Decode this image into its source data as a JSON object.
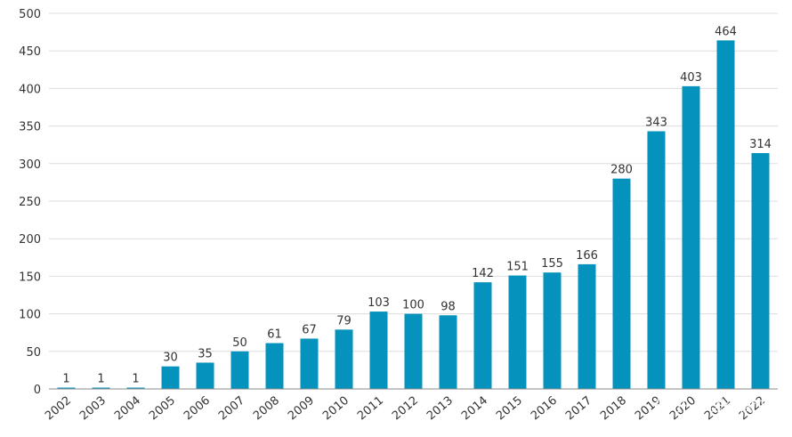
{
  "chart_data": {
    "type": "bar",
    "categories": [
      "2002",
      "2003",
      "2004",
      "2005",
      "2006",
      "2007",
      "2008",
      "2009",
      "2010",
      "2011",
      "2012",
      "2013",
      "2014",
      "2015",
      "2016",
      "2017",
      "2018",
      "2019",
      "2020",
      "2021",
      "2022"
    ],
    "values": [
      1,
      1,
      1,
      30,
      35,
      50,
      61,
      67,
      79,
      103,
      100,
      98,
      142,
      151,
      155,
      166,
      280,
      343,
      403,
      464,
      314
    ],
    "data_labels": [
      "1",
      "1",
      "1",
      "30",
      "35",
      "50",
      "61",
      "67",
      "79",
      "103",
      "100",
      "98",
      "142",
      "151",
      "155",
      "166",
      "280",
      "343",
      "403",
      "464",
      "314"
    ],
    "ylim": [
      0,
      500
    ],
    "yticks": [
      "0",
      "50",
      "100",
      "150",
      "200",
      "250",
      "300",
      "350",
      "400",
      "450",
      "500"
    ],
    "grid": true,
    "legend": "none",
    "bar_color": "#0592BC",
    "grid_color": "#DDDDDD",
    "axis_color": "#888888"
  },
  "watermark": "知乎 @医药魔方"
}
